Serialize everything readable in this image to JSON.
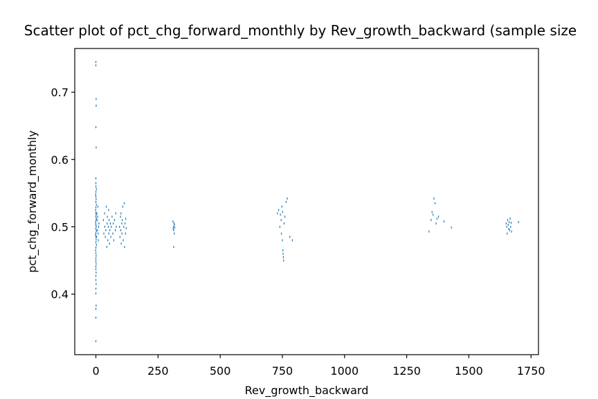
{
  "chart_data": {
    "type": "scatter",
    "title": "Scatter plot of pct_chg_forward_monthly by Rev_growth_backward (sample size",
    "xlabel": "Rev_growth_backward",
    "ylabel": "pct_chg_forward_monthly",
    "xlim": [
      -85,
      1780
    ],
    "ylim": [
      0.31,
      0.765
    ],
    "xticks": [
      0,
      250,
      500,
      750,
      1000,
      1250,
      1500,
      1750
    ],
    "yticks": [
      0.4,
      0.5,
      0.6,
      0.7
    ],
    "xtick_labels": [
      "0",
      "250",
      "500",
      "750",
      "1000",
      "1250",
      "1500",
      "1750"
    ],
    "ytick_labels": [
      "0.4",
      "0.5",
      "0.6",
      "0.7"
    ],
    "grid": false,
    "marker_color": "#1f77b4",
    "series": [
      {
        "points": [
          [
            0,
            0.745
          ],
          [
            0,
            0.74
          ],
          [
            1,
            0.69
          ],
          [
            1,
            0.68
          ],
          [
            0,
            0.648
          ],
          [
            1,
            0.618
          ],
          [
            0,
            0.572
          ],
          [
            0,
            0.565
          ],
          [
            0,
            0.56
          ],
          [
            2,
            0.556
          ],
          [
            0,
            0.552
          ],
          [
            -1,
            0.548
          ],
          [
            0,
            0.545
          ],
          [
            1,
            0.541
          ],
          [
            0,
            0.537
          ],
          [
            2,
            0.533
          ],
          [
            0,
            0.529
          ],
          [
            -1,
            0.525
          ],
          [
            0,
            0.521
          ],
          [
            1,
            0.518
          ],
          [
            0,
            0.515
          ],
          [
            2,
            0.512
          ],
          [
            0,
            0.509
          ],
          [
            -1,
            0.506
          ],
          [
            0,
            0.503
          ],
          [
            1,
            0.5
          ],
          [
            0,
            0.497
          ],
          [
            2,
            0.494
          ],
          [
            0,
            0.491
          ],
          [
            -1,
            0.488
          ],
          [
            0,
            0.485
          ],
          [
            1,
            0.481
          ],
          [
            0,
            0.477
          ],
          [
            2,
            0.473
          ],
          [
            0,
            0.469
          ],
          [
            -1,
            0.465
          ],
          [
            0,
            0.461
          ],
          [
            1,
            0.457
          ],
          [
            0,
            0.453
          ],
          [
            0,
            0.449
          ],
          [
            1,
            0.445
          ],
          [
            0,
            0.441
          ],
          [
            0,
            0.437
          ],
          [
            1,
            0.432
          ],
          [
            0,
            0.427
          ],
          [
            0,
            0.421
          ],
          [
            1,
            0.415
          ],
          [
            0,
            0.408
          ],
          [
            0,
            0.401
          ],
          [
            1,
            0.383
          ],
          [
            0,
            0.378
          ],
          [
            0,
            0.365
          ],
          [
            0,
            0.33
          ],
          [
            4,
            0.52
          ],
          [
            5,
            0.51
          ],
          [
            6,
            0.495
          ],
          [
            8,
            0.53
          ],
          [
            10,
            0.48
          ],
          [
            12,
            0.505
          ],
          [
            3,
            0.485
          ],
          [
            7,
            0.515
          ],
          [
            9,
            0.49
          ],
          [
            11,
            0.5
          ],
          [
            30,
            0.51
          ],
          [
            32,
            0.49
          ],
          [
            35,
            0.52
          ],
          [
            36,
            0.5
          ],
          [
            38,
            0.485
          ],
          [
            40,
            0.495
          ],
          [
            42,
            0.53
          ],
          [
            44,
            0.47
          ],
          [
            45,
            0.505
          ],
          [
            46,
            0.515
          ],
          [
            48,
            0.48
          ],
          [
            50,
            0.5
          ],
          [
            51,
            0.525
          ],
          [
            52,
            0.49
          ],
          [
            53,
            0.51
          ],
          [
            55,
            0.475
          ],
          [
            56,
            0.495
          ],
          [
            58,
            0.505
          ],
          [
            60,
            0.485
          ],
          [
            62,
            0.5
          ],
          [
            65,
            0.515
          ],
          [
            68,
            0.49
          ],
          [
            70,
            0.505
          ],
          [
            72,
            0.48
          ],
          [
            75,
            0.51
          ],
          [
            78,
            0.495
          ],
          [
            80,
            0.52
          ],
          [
            82,
            0.5
          ],
          [
            95,
            0.5
          ],
          [
            97,
            0.485
          ],
          [
            99,
            0.515
          ],
          [
            100,
            0.495
          ],
          [
            101,
            0.52
          ],
          [
            102,
            0.475
          ],
          [
            104,
            0.505
          ],
          [
            105,
            0.49
          ],
          [
            106,
            0.51
          ],
          [
            108,
            0.53
          ],
          [
            110,
            0.48
          ],
          [
            112,
            0.5
          ],
          [
            114,
            0.535
          ],
          [
            115,
            0.47
          ],
          [
            117,
            0.505
          ],
          [
            119,
            0.49
          ],
          [
            120,
            0.512
          ],
          [
            122,
            0.498
          ],
          [
            310,
            0.508
          ],
          [
            312,
            0.5
          ],
          [
            313,
            0.495
          ],
          [
            314,
            0.505
          ],
          [
            315,
            0.49
          ],
          [
            316,
            0.503
          ],
          [
            311,
            0.497
          ],
          [
            313,
            0.47
          ],
          [
            317,
            0.499
          ],
          [
            730,
            0.52
          ],
          [
            735,
            0.525
          ],
          [
            740,
            0.5
          ],
          [
            742,
            0.518
          ],
          [
            745,
            0.51
          ],
          [
            746,
            0.49
          ],
          [
            748,
            0.53
          ],
          [
            750,
            0.48
          ],
          [
            751,
            0.522
          ],
          [
            752,
            0.465
          ],
          [
            753,
            0.46
          ],
          [
            754,
            0.455
          ],
          [
            755,
            0.45
          ],
          [
            757,
            0.505
          ],
          [
            760,
            0.515
          ],
          [
            765,
            0.537
          ],
          [
            770,
            0.542
          ],
          [
            780,
            0.485
          ],
          [
            790,
            0.48
          ],
          [
            1340,
            0.493
          ],
          [
            1348,
            0.51
          ],
          [
            1352,
            0.522
          ],
          [
            1356,
            0.518
          ],
          [
            1360,
            0.542
          ],
          [
            1364,
            0.535
          ],
          [
            1368,
            0.505
          ],
          [
            1372,
            0.512
          ],
          [
            1378,
            0.515
          ],
          [
            1400,
            0.508
          ],
          [
            1430,
            0.499
          ],
          [
            1650,
            0.505
          ],
          [
            1652,
            0.5
          ],
          [
            1654,
            0.49
          ],
          [
            1656,
            0.51
          ],
          [
            1658,
            0.503
          ],
          [
            1660,
            0.497
          ],
          [
            1662,
            0.507
          ],
          [
            1664,
            0.495
          ],
          [
            1666,
            0.512
          ],
          [
            1668,
            0.5
          ],
          [
            1670,
            0.506
          ],
          [
            1672,
            0.493
          ],
          [
            1700,
            0.507
          ]
        ]
      }
    ]
  }
}
